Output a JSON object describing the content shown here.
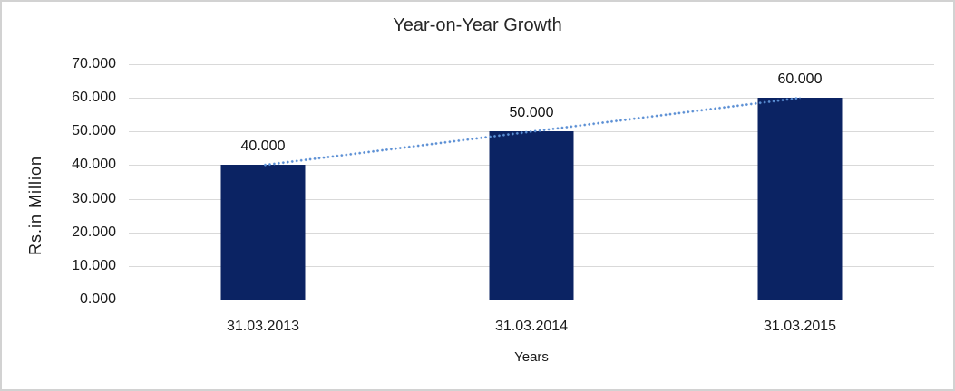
{
  "chart_data": {
    "type": "bar",
    "title": "Year-on-Year Growth",
    "xlabel": "Years",
    "ylabel": "Rs.in Million",
    "categories": [
      "31.03.2013",
      "31.03.2014",
      "31.03.2015"
    ],
    "series": [
      {
        "values": [
          40,
          50,
          60
        ],
        "value_labels": [
          "40.000",
          "50.000",
          "60.000"
        ]
      }
    ],
    "ylim": [
      0,
      70
    ],
    "y_tick_labels": [
      "0.000",
      "10.000",
      "20.000",
      "30.000",
      "40.000",
      "50.000",
      "60.000",
      "70.000"
    ],
    "grid": true,
    "legend": "none",
    "trendline": {
      "type": "linear",
      "style": "dotted",
      "color": "#5b8fd4"
    },
    "colors": {
      "bar": "#0b2363",
      "trend": "#5b8fd4",
      "grid": "#d9d9d9",
      "axis_line": "#bfbfbf",
      "border": "#d2d2d2",
      "text": "#1a1a1a"
    }
  }
}
